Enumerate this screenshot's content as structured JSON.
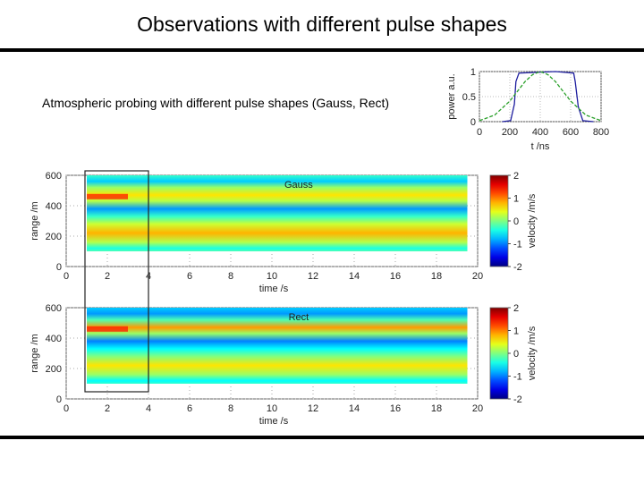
{
  "slide": {
    "title": "Observations with different pulse shapes",
    "description": "Atmospheric probing with different pulse shapes (Gauss, Rect)"
  },
  "chart_data": [
    {
      "type": "line",
      "xlabel": "t /ns",
      "ylabel": "power a.u.",
      "xlim": [
        0,
        800
      ],
      "ylim": [
        0,
        1
      ],
      "xticks": [
        "0",
        "200",
        "400",
        "600",
        "800"
      ],
      "yticks": [
        "0",
        "0.5",
        "1"
      ],
      "grid": true,
      "series": [
        {
          "color": "#1d1d9e",
          "x": [
            150,
            205,
            230,
            240,
            260,
            500,
            620,
            630,
            650,
            680,
            750
          ],
          "y": [
            0.0,
            0.02,
            0.35,
            0.8,
            0.97,
            1.0,
            0.97,
            0.8,
            0.3,
            0.02,
            0.0
          ]
        },
        {
          "color": "#2aa02a",
          "x": [
            0,
            100,
            200,
            300,
            350,
            400,
            450,
            500,
            600,
            700,
            800
          ],
          "y": [
            0.02,
            0.13,
            0.41,
            0.8,
            0.94,
            1.0,
            0.94,
            0.8,
            0.41,
            0.13,
            0.02
          ]
        }
      ]
    },
    {
      "type": "heatmap",
      "label": "Gauss",
      "xlabel": "time /s",
      "ylabel": "range /m",
      "xlim": [
        0,
        20
      ],
      "ylim": [
        0,
        600
      ],
      "xticks": [
        "0",
        "2",
        "4",
        "6",
        "8",
        "10",
        "12",
        "14",
        "16",
        "18",
        "20"
      ],
      "yticks": [
        "0",
        "200",
        "400",
        "600"
      ],
      "data_range": {
        "time": [
          1,
          19.5
        ],
        "range": [
          100,
          600
        ]
      },
      "colorbar": {
        "label": "velocity /m/s",
        "ticks": [
          "2",
          "1",
          "0",
          "-1",
          "-2"
        ],
        "range": [
          -2,
          2
        ]
      },
      "highlight_box": {
        "time": [
          1,
          4
        ]
      },
      "range_bands": [
        {
          "range": 600,
          "velocity": -0.3
        },
        {
          "range": 560,
          "velocity": -0.7
        },
        {
          "range": 520,
          "velocity": 0.1
        },
        {
          "range": 470,
          "velocity": 0.6
        },
        {
          "range": 430,
          "velocity": 0.2
        },
        {
          "range": 380,
          "velocity": -0.9
        },
        {
          "range": 330,
          "velocity": -0.3
        },
        {
          "range": 280,
          "velocity": 0.3
        },
        {
          "range": 220,
          "velocity": 0.8
        },
        {
          "range": 160,
          "velocity": 0.2
        },
        {
          "range": 120,
          "velocity": -0.4
        },
        {
          "range": 100,
          "velocity": -0.2
        }
      ]
    },
    {
      "type": "heatmap",
      "label": "Rect",
      "xlabel": "time /s",
      "ylabel": "range /m",
      "xlim": [
        0,
        20
      ],
      "ylim": [
        0,
        600
      ],
      "xticks": [
        "0",
        "2",
        "4",
        "6",
        "8",
        "10",
        "12",
        "14",
        "16",
        "18",
        "20"
      ],
      "yticks": [
        "0",
        "200",
        "400",
        "600"
      ],
      "data_range": {
        "time": [
          1,
          19.5
        ],
        "range": [
          100,
          600
        ]
      },
      "colorbar": {
        "label": "velocity /m/s",
        "ticks": [
          "2",
          "1",
          "0",
          "-1",
          "-2"
        ],
        "range": [
          -2,
          2
        ]
      },
      "highlight_box": {
        "time": [
          1,
          4
        ]
      },
      "range_bands": [
        {
          "range": 600,
          "velocity": -0.7
        },
        {
          "range": 560,
          "velocity": -0.9
        },
        {
          "range": 520,
          "velocity": -0.2
        },
        {
          "range": 470,
          "velocity": 0.9
        },
        {
          "range": 430,
          "velocity": 0.1
        },
        {
          "range": 380,
          "velocity": -1.0
        },
        {
          "range": 330,
          "velocity": -0.5
        },
        {
          "range": 280,
          "velocity": 0.0
        },
        {
          "range": 220,
          "velocity": 0.6
        },
        {
          "range": 160,
          "velocity": 0.1
        },
        {
          "range": 120,
          "velocity": -0.5
        },
        {
          "range": 100,
          "velocity": -0.3
        }
      ]
    }
  ]
}
